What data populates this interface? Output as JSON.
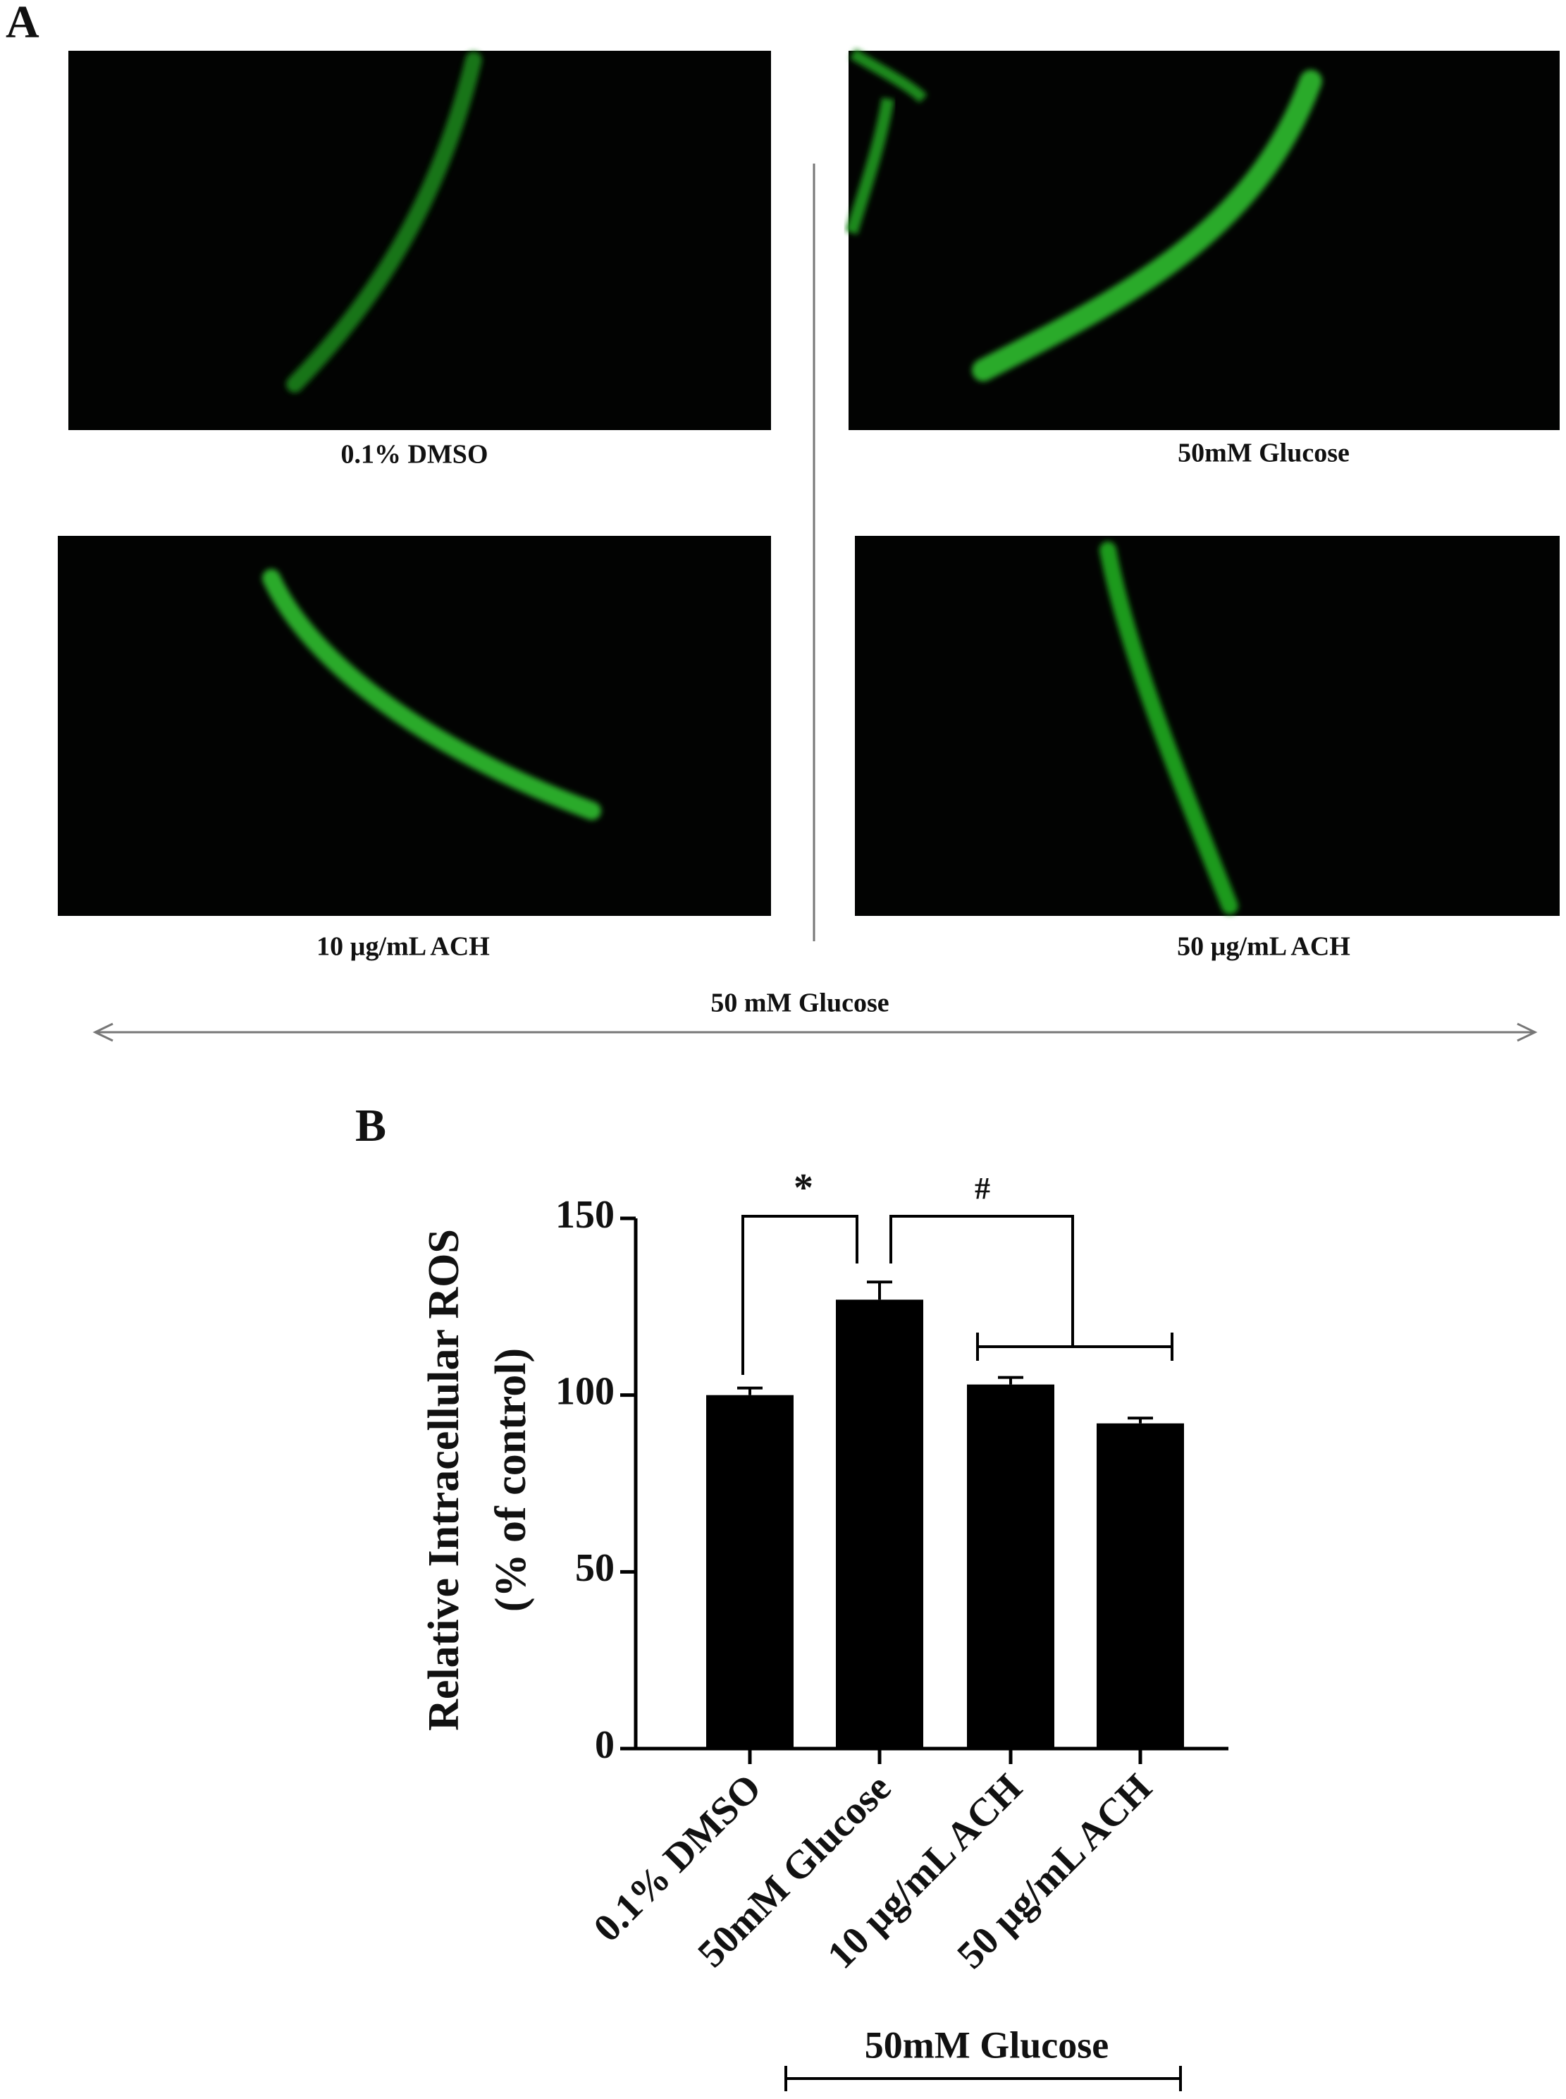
{
  "panel_a": {
    "label": "A",
    "images": [
      "0.1% DMSO",
      "50mM Glucose",
      "10 µg/mL ACH",
      "50 µg/mL ACH"
    ],
    "group_label": "50 mM Glucose"
  },
  "chart_data": {
    "type": "bar",
    "panel_label": "B",
    "ylabel": [
      "Relative Intracellular ROS",
      "(% of control)"
    ],
    "categories": [
      "0.1% DMSO",
      "50mM Glucose",
      "10 µg/mL ACH",
      "50 µg/mL ACH"
    ],
    "values": [
      100,
      127,
      103,
      92
    ],
    "errors": [
      2,
      5,
      2,
      1.5
    ],
    "color": "#000000",
    "ylim": [
      0,
      150
    ],
    "yticks": [
      0,
      50,
      100,
      150
    ],
    "annotations": [
      "*",
      "#"
    ],
    "group_label": "50mM Glucose"
  }
}
